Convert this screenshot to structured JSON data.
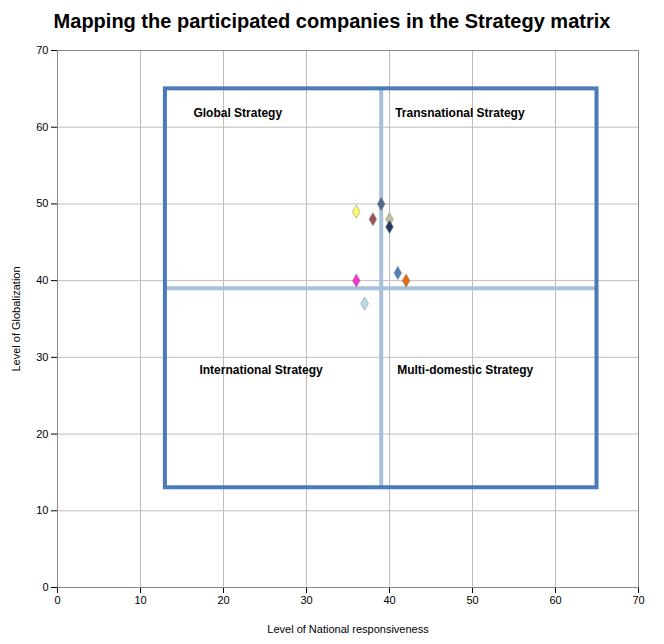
{
  "chart_data": {
    "type": "scatter",
    "title": "Mapping the participated companies in the Strategy matrix",
    "x_label": "Level of National responsiveness",
    "y_label": "Level of Globalization",
    "marker": "diamond",
    "x": [
      36,
      38,
      39,
      40,
      40,
      36,
      41,
      42,
      37
    ],
    "values": [
      49,
      48,
      50,
      48,
      47,
      40,
      41,
      40,
      37
    ],
    "colors": [
      "#ffff66",
      "#a0525a",
      "#4f6a8f",
      "#c4bd97",
      "#1f3864",
      "#ff33cc",
      "#4f81bd",
      "#e46c0a",
      "#b7dde8"
    ],
    "xlim": [
      0,
      70
    ],
    "ylim": [
      0,
      70
    ],
    "xticks": [
      0,
      10,
      20,
      30,
      40,
      50,
      60,
      70
    ],
    "yticks": [
      0,
      10,
      20,
      30,
      40,
      50,
      60,
      70
    ],
    "grid": true,
    "matrix": {
      "x": [
        13,
        65
      ],
      "y": [
        13,
        65
      ],
      "x_divider": 39,
      "y_divider": 39,
      "quadrants": {
        "top_left": "Global Strategy",
        "top_right": "Transnational Strategy",
        "bottom_left": "International Strategy",
        "bottom_right": "Multi-domestic Strategy"
      }
    }
  }
}
